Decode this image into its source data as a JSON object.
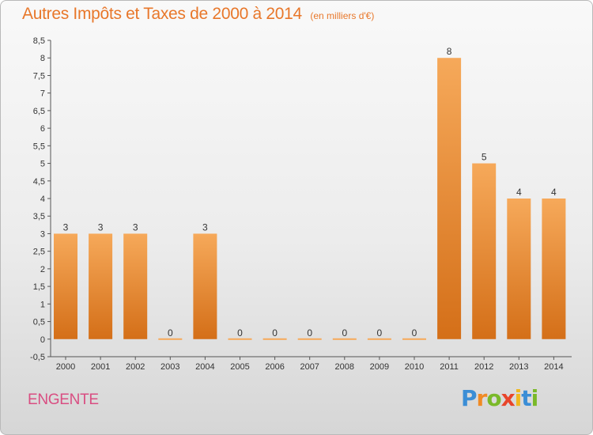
{
  "chart_data": {
    "type": "bar",
    "title": "Autres Impôts et Taxes de 2000 à 2014",
    "unit_label": "(en milliers d'€)",
    "categories": [
      "2000",
      "2001",
      "2002",
      "2003",
      "2004",
      "2005",
      "2006",
      "2007",
      "2008",
      "2009",
      "2010",
      "2011",
      "2012",
      "2013",
      "2014"
    ],
    "values": [
      3,
      3,
      3,
      0,
      3,
      0,
      0,
      0,
      0,
      0,
      0,
      8,
      5,
      4,
      4
    ],
    "value_labels": [
      "3",
      "3",
      "3",
      "0",
      "3",
      "0",
      "0",
      "0",
      "0",
      "0",
      "0",
      "8",
      "5",
      "4",
      "4"
    ],
    "ylim": [
      -0.5,
      8.5
    ],
    "yticks": [
      -0.5,
      0,
      0.5,
      1,
      1.5,
      2,
      2.5,
      3,
      3.5,
      4,
      4.5,
      5,
      5.5,
      6,
      6.5,
      7,
      7.5,
      8,
      8.5
    ],
    "ytick_labels": [
      "-0,5",
      "0",
      "0,5",
      "1",
      "1,5",
      "2",
      "2,5",
      "3",
      "3,5",
      "4",
      "4,5",
      "5",
      "5,5",
      "6",
      "6,5",
      "7",
      "7,5",
      "8",
      "8,5"
    ],
    "grid": false,
    "legend": "none",
    "colors": {
      "bar_light": "#f6a95a",
      "bar_dark": "#d46f18",
      "title": "#e8772a",
      "axis": "#555555"
    }
  },
  "footer": {
    "commune": "ENGENTE",
    "logo_letters": [
      "P",
      "r",
      "o",
      "x",
      "i",
      "t",
      "i"
    ],
    "logo_colors": [
      "#3b8ed6",
      "#f08a24",
      "#7ab929",
      "#e8452a",
      "#f0b81e",
      "#3b8ed6",
      "#7ab929"
    ]
  }
}
